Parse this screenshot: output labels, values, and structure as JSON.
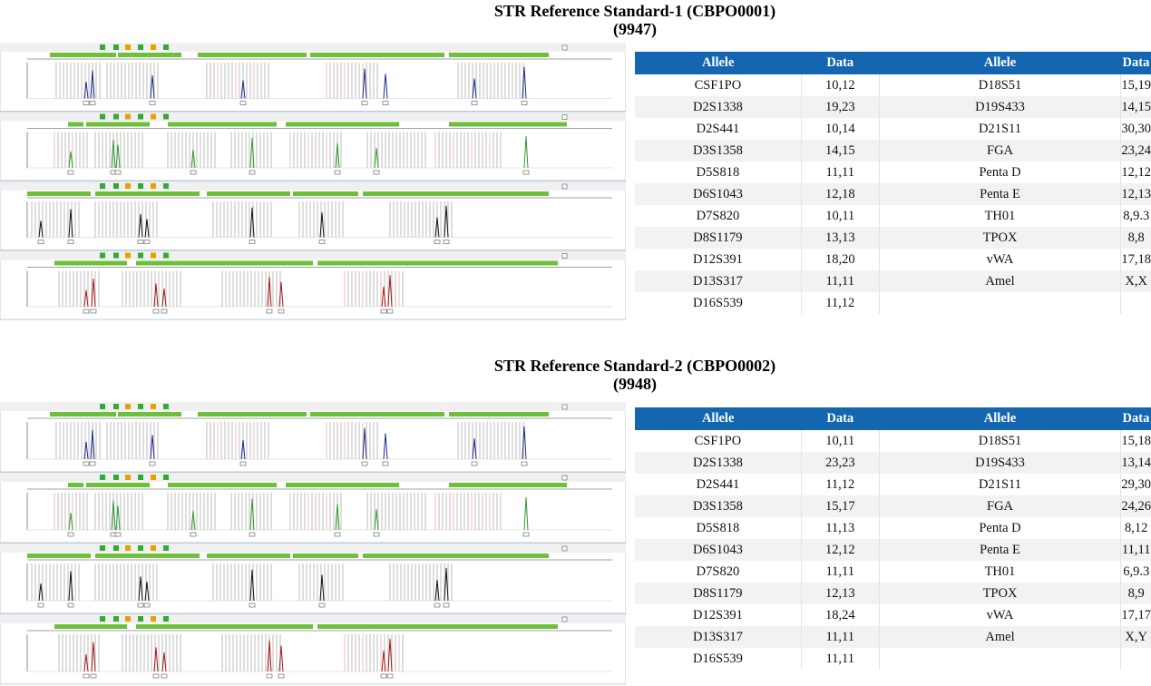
{
  "standards": [
    {
      "title_line1": "STR Reference Standard-1 (CBPO0001)",
      "title_line2": "(9947)",
      "headers": [
        "Allele",
        "Data",
        "Allele",
        "Data"
      ],
      "rows": [
        [
          "CSF1PO",
          "10,12",
          "D18S51",
          "15,19"
        ],
        [
          "D2S1338",
          "19,23",
          "D19S433",
          "14,15"
        ],
        [
          "D2S441",
          "10,14",
          "D21S11",
          "30,30"
        ],
        [
          "D3S1358",
          "14,15",
          "FGA",
          "23,24"
        ],
        [
          "D5S818",
          "11,11",
          "Penta D",
          "12,12"
        ],
        [
          "D6S1043",
          "12,18",
          "Penta E",
          "12,13"
        ],
        [
          "D7S820",
          "10,11",
          "TH01",
          "8,9.3"
        ],
        [
          "D8S1179",
          "13,13",
          "TPOX",
          "8,8"
        ],
        [
          "D12S391",
          "18,20",
          "vWA",
          "17,18"
        ],
        [
          "D13S317",
          "11,11",
          "Amel",
          "X,X"
        ],
        [
          "D16S539",
          "11,12",
          "",
          ""
        ]
      ]
    },
    {
      "title_line1": "STR Reference Standard-2 (CBPO0002)",
      "title_line2": "(9948)",
      "headers": [
        "Allele",
        "Data",
        "Allele",
        "Data"
      ],
      "rows": [
        [
          "CSF1PO",
          "10,11",
          "D18S51",
          "15,18"
        ],
        [
          "D2S1338",
          "23,23",
          "D19S433",
          "13,14"
        ],
        [
          "D2S441",
          "11,12",
          "D21S11",
          "29,30"
        ],
        [
          "D3S1358",
          "15,17",
          "FGA",
          "24,26"
        ],
        [
          "D5S818",
          "11,13",
          "Penta D",
          "8,12"
        ],
        [
          "D6S1043",
          "12,12",
          "Penta E",
          "11,11"
        ],
        [
          "D7S820",
          "11,11",
          "TH01",
          "6,9.3"
        ],
        [
          "D8S1179",
          "12,13",
          "TPOX",
          "8,9"
        ],
        [
          "D12S391",
          "18,24",
          "vWA",
          "17,17"
        ],
        [
          "D13S317",
          "11,11",
          "Amel",
          "X,Y"
        ],
        [
          "D16S539",
          "11,11",
          "",
          ""
        ]
      ]
    }
  ],
  "colors": {
    "header_bg": "#1466b0",
    "dye_blue": "#1a2a8a",
    "dye_green": "#2e9a2e",
    "dye_black": "#111111",
    "dye_red": "#a81818",
    "locus_bar": "#6cc03a"
  }
}
